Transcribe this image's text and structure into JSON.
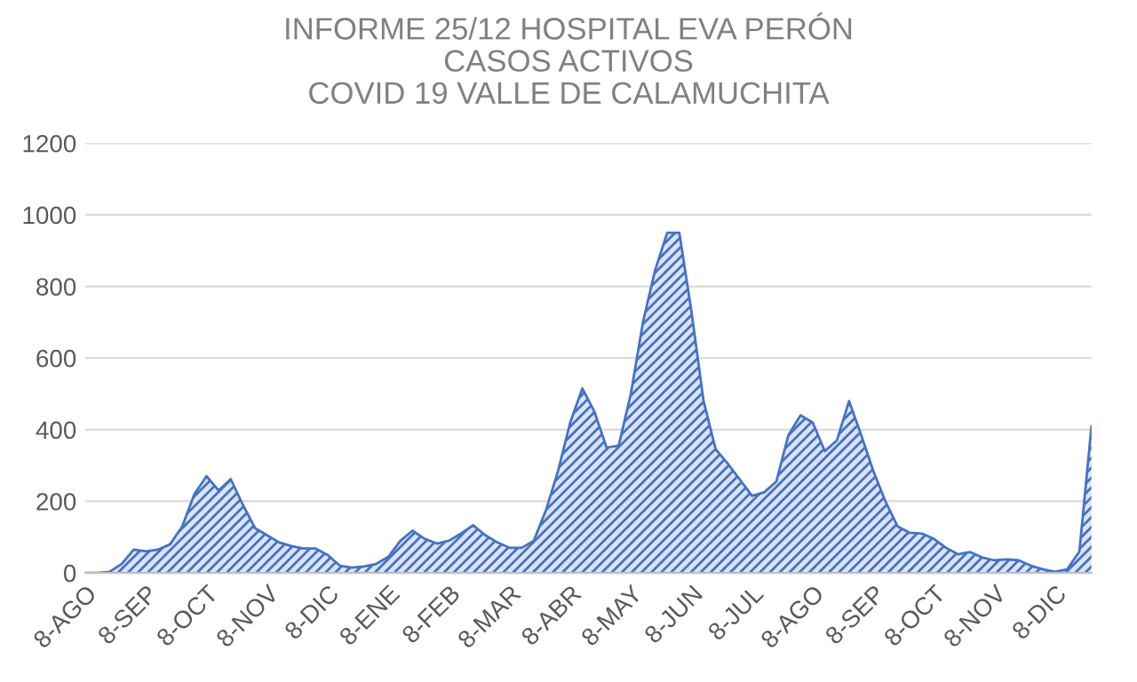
{
  "chart_data": {
    "type": "area",
    "title": "INFORME 25/12 HOSPITAL EVA PERÓN\nCASOS ACTIVOS\nCOVID 19 VALLE DE CALAMUCHITA",
    "categories": [
      "8-AGO",
      null,
      null,
      null,
      null,
      "8-SEP",
      null,
      null,
      null,
      null,
      "8-OCT",
      null,
      null,
      null,
      null,
      "8-NOV",
      null,
      null,
      null,
      null,
      "8-DIC",
      null,
      null,
      null,
      null,
      "8-ENE",
      null,
      null,
      null,
      null,
      "8-FEB",
      null,
      null,
      null,
      null,
      "8-MAR",
      null,
      null,
      null,
      null,
      "8-ABR",
      null,
      null,
      null,
      null,
      "8-MAY",
      null,
      null,
      null,
      null,
      "8-JUN",
      null,
      null,
      null,
      null,
      "8-JUL",
      null,
      null,
      null,
      null,
      "8-AGO",
      null,
      null,
      null,
      null,
      "8-SEP",
      null,
      null,
      null,
      null,
      "8-OCT",
      null,
      null,
      null,
      null,
      "8-NOV",
      null,
      null,
      null,
      null,
      "8-DIC",
      null,
      null,
      null
    ],
    "series": [
      {
        "color": "#4472c4",
        "values": [
          0,
          0,
          3,
          25,
          65,
          60,
          65,
          80,
          130,
          220,
          270,
          230,
          262,
          190,
          125,
          105,
          85,
          75,
          68,
          68,
          50,
          20,
          15,
          18,
          25,
          45,
          90,
          118,
          95,
          82,
          90,
          110,
          133,
          105,
          85,
          70,
          70,
          90,
          175,
          285,
          420,
          515,
          450,
          350,
          355,
          500,
          700,
          845,
          950,
          950,
          730,
          480,
          345,
          305,
          260,
          215,
          225,
          255,
          385,
          440,
          420,
          340,
          370,
          480,
          385,
          285,
          200,
          130,
          112,
          110,
          95,
          70,
          52,
          58,
          43,
          35,
          38,
          35,
          20,
          10,
          3,
          10,
          60,
          410
        ]
      }
    ],
    "ylim": [
      0,
      1200
    ],
    "yticks": [
      0,
      200,
      400,
      600,
      800,
      1000,
      1200
    ],
    "grid": "y"
  }
}
